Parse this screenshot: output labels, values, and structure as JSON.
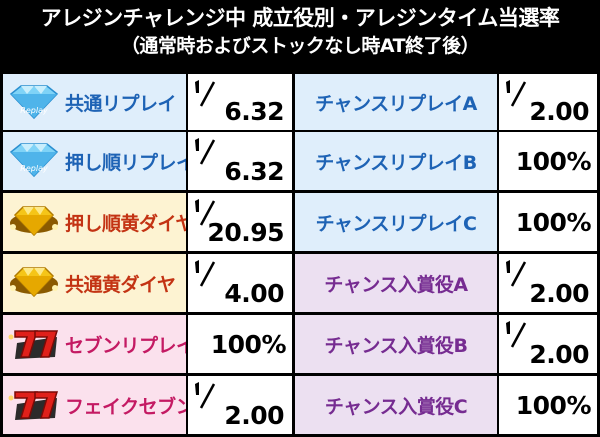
{
  "header": {
    "title": "アレジンチャレンジ中 成立役別・アレジンタイム当選率",
    "subtitle": "（通常時およびストックなし時AT終了後）"
  },
  "rows": [
    {
      "left_label": "共通リプレイ",
      "left_icon": "diamond-replay-icon",
      "left_bg": "#dfeefb",
      "left_color": "#1e63b5",
      "left_value": "6.32",
      "left_fraction": true,
      "right_label": "チャンスリプレイA",
      "right_bg": "#dfeefb",
      "right_color": "#1e63b5",
      "right_value": "2.00",
      "right_fraction": true
    },
    {
      "left_label": "押し順リプレイ",
      "left_icon": "diamond-replay-icon",
      "left_bg": "#dfeefb",
      "left_color": "#1e63b5",
      "left_value": "6.32",
      "left_fraction": true,
      "right_label": "チャンスリプレイB",
      "right_bg": "#dfeefb",
      "right_color": "#1e63b5",
      "right_value": "100%",
      "right_fraction": false
    },
    {
      "left_label": "押し順黄ダイヤ",
      "left_icon": "yellow-diamond-icon",
      "left_bg": "#fdf3d2",
      "left_color": "#c33313",
      "left_value": "20.95",
      "left_fraction": true,
      "right_label": "チャンスリプレイC",
      "right_bg": "#dfeefb",
      "right_color": "#1e63b5",
      "right_value": "100%",
      "right_fraction": false
    },
    {
      "left_label": "共通黄ダイヤ",
      "left_icon": "yellow-diamond-icon",
      "left_bg": "#fdf3d2",
      "left_color": "#c33313",
      "left_value": "4.00",
      "left_fraction": true,
      "right_label": "チャンス入賞役A",
      "right_bg": "#ece0f1",
      "right_color": "#762c91",
      "right_value": "2.00",
      "right_fraction": true
    },
    {
      "left_label": "セブンリプレイ",
      "left_icon": "red-seven-icon",
      "left_bg": "#fbe1ed",
      "left_color": "#c41a63",
      "left_value": "100%",
      "left_fraction": false,
      "right_label": "チャンス入賞役B",
      "right_bg": "#ece0f1",
      "right_color": "#762c91",
      "right_value": "2.00",
      "right_fraction": true
    },
    {
      "left_label": "フェイクセブン",
      "left_icon": "red-seven-icon",
      "left_bg": "#fbe1ed",
      "left_color": "#c41a63",
      "left_value": "2.00",
      "left_fraction": true,
      "right_label": "チャンス入賞役C",
      "right_bg": "#ece0f1",
      "right_color": "#762c91",
      "right_value": "100%",
      "right_fraction": false
    }
  ],
  "icons": {
    "replay_text": "Replay"
  }
}
